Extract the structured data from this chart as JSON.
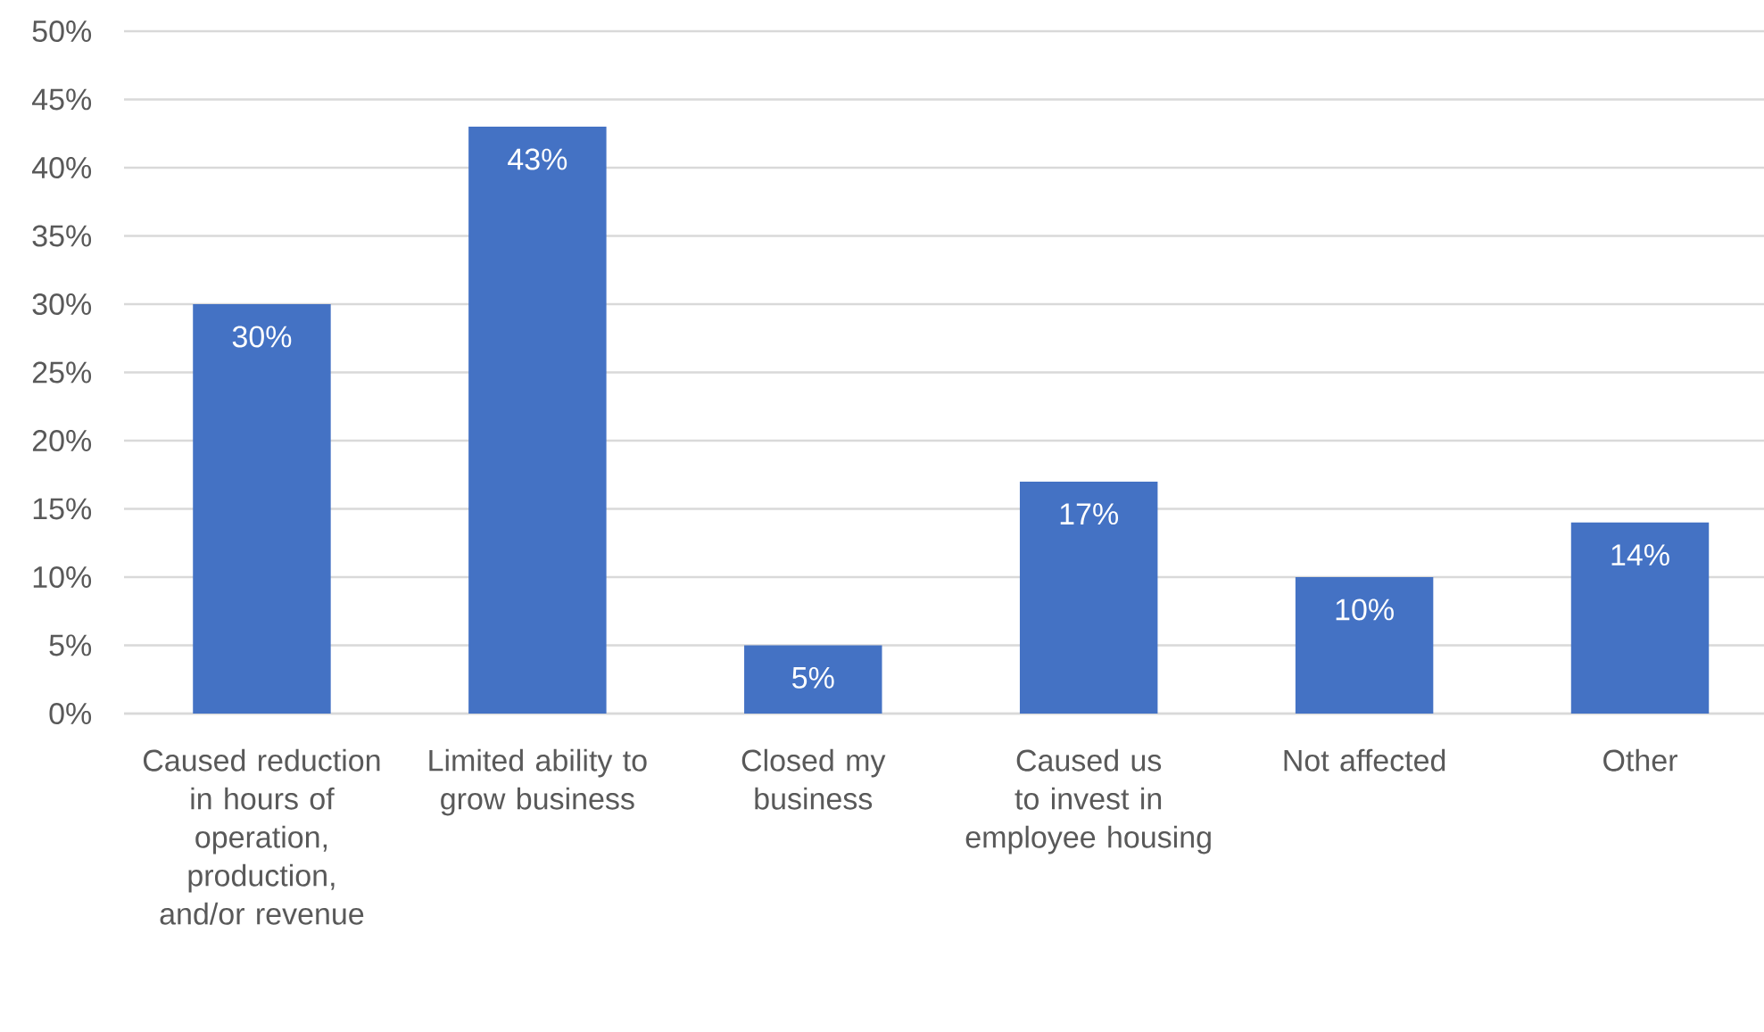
{
  "chart_data": {
    "type": "bar",
    "categories": [
      "Caused reduction in hours of operation, production, and/or revenue",
      "Limited ability to grow business",
      "Closed my business",
      "Caused us to invest in employee housing",
      "Not affected",
      "Other"
    ],
    "values": [
      30,
      43,
      5,
      17,
      10,
      14
    ],
    "value_labels": [
      "30%",
      "43%",
      "5%",
      "17%",
      "10%",
      "14%"
    ],
    "color": "#4472c4",
    "ylim": [
      0,
      50
    ],
    "yticks": [
      {
        "value": 0,
        "label": "0%"
      },
      {
        "value": 5,
        "label": "5%"
      },
      {
        "value": 10,
        "label": "10%"
      },
      {
        "value": 15,
        "label": "15%"
      },
      {
        "value": 20,
        "label": "20%"
      },
      {
        "value": 25,
        "label": "25%"
      },
      {
        "value": 30,
        "label": "30%"
      },
      {
        "value": 35,
        "label": "35%"
      },
      {
        "value": 40,
        "label": "40%"
      },
      {
        "value": 45,
        "label": "45%"
      },
      {
        "value": 50,
        "label": "50%"
      }
    ],
    "grid": "y"
  }
}
